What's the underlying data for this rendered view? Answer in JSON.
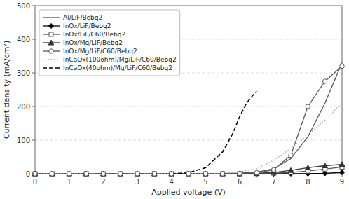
{
  "chart_data": {
    "type": "line",
    "xlabel": "Applied voltage (V)",
    "ylabel": "Current density (mA/cm²)",
    "xlim": [
      0,
      9
    ],
    "ylim": [
      0,
      500
    ],
    "xticks": [
      0,
      1,
      2,
      3,
      4,
      5,
      6,
      7,
      8,
      9
    ],
    "yticks": [
      0,
      100,
      200,
      300,
      400,
      500
    ],
    "grid": true,
    "legend": "upper-left",
    "series": [
      {
        "name": "Al/LiF/Bebq2",
        "color": "#555555",
        "line_style": "solid",
        "x": [
          0,
          0.5,
          1,
          1.5,
          2,
          2.5,
          3,
          3.5,
          4,
          4.5,
          5,
          5.5,
          6,
          6.5,
          7,
          7.5,
          8,
          8.5,
          9
        ],
        "values": [
          0,
          0,
          0,
          0,
          0,
          0,
          0,
          0,
          0,
          0,
          0.3,
          0.8,
          2,
          5,
          15,
          45,
          110,
          210,
          330
        ]
      },
      {
        "name": "InOx/LiF/Bebq2",
        "color": "#000000",
        "line_style": "solid",
        "marker": "diamond",
        "x": [
          0,
          0.5,
          1,
          1.5,
          2,
          2.5,
          3,
          3.5,
          4,
          4.5,
          5,
          5.5,
          6,
          6.5,
          7,
          7.5,
          8,
          8.5,
          9
        ],
        "values": [
          0,
          0,
          0,
          0,
          0,
          0,
          0,
          0,
          0,
          0,
          0,
          0,
          0,
          0,
          0,
          0,
          0,
          1,
          4
        ]
      },
      {
        "name": "InOx/LiF/C60/Bebq2",
        "color": "#555555",
        "line_style": "solid",
        "marker": "open-square",
        "x": [
          0,
          0.5,
          1,
          1.5,
          2,
          2.5,
          3,
          3.5,
          4,
          4.5,
          5,
          5.5,
          6,
          6.5,
          7,
          7.5,
          8,
          8.5,
          9
        ],
        "values": [
          0,
          0,
          0,
          0,
          0,
          0,
          0,
          0,
          0,
          0,
          0,
          0,
          0,
          0.5,
          2,
          4,
          8,
          14,
          20
        ]
      },
      {
        "name": "InOx/Mg/LiF/Bebq2",
        "color": "#333333",
        "line_style": "solid",
        "marker": "triangle",
        "x": [
          0,
          0.5,
          1,
          1.5,
          2,
          2.5,
          3,
          3.5,
          4,
          4.5,
          5,
          5.5,
          6,
          6.5,
          7,
          7.5,
          8,
          8.5,
          9
        ],
        "values": [
          0,
          0,
          0,
          0,
          0,
          0,
          0,
          0,
          0,
          0,
          0,
          0,
          0,
          1,
          4,
          10,
          18,
          24,
          28
        ]
      },
      {
        "name": "InOx/Mg/LiF/C60/Bebq2",
        "color": "#555555",
        "line_style": "solid",
        "marker": "open-circle",
        "x": [
          0,
          0.5,
          1,
          1.5,
          2,
          2.5,
          3,
          3.5,
          4,
          4.5,
          5,
          5.5,
          6,
          6.5,
          7,
          7.5,
          8,
          8.5,
          9
        ],
        "values": [
          0,
          0,
          0,
          0,
          0,
          0,
          0,
          0,
          0,
          0,
          0,
          0,
          1,
          3,
          12,
          55,
          200,
          275,
          320
        ]
      },
      {
        "name": "InCaOx(100ohm)/Mg/LiF/C60/Bebq2",
        "color": "#aaaaaa",
        "line_style": "dotted",
        "x": [
          0,
          1,
          2,
          3,
          4,
          4.5,
          5,
          5.5,
          6,
          6.5,
          7,
          7.5,
          8,
          8.5,
          9
        ],
        "values": [
          0,
          0,
          0,
          0,
          0,
          0,
          0.5,
          2,
          6,
          15,
          40,
          75,
          115,
          160,
          210
        ]
      },
      {
        "name": "InCaOx(40ohm)/Mg/LiF/C60/Bebq2",
        "color": "#000000",
        "line_style": "dashed",
        "x": [
          4.0,
          4.5,
          5.0,
          5.5,
          5.8,
          6.0,
          6.2,
          6.4,
          6.5
        ],
        "values": [
          0,
          3,
          18,
          65,
          120,
          170,
          210,
          235,
          245
        ]
      }
    ]
  }
}
